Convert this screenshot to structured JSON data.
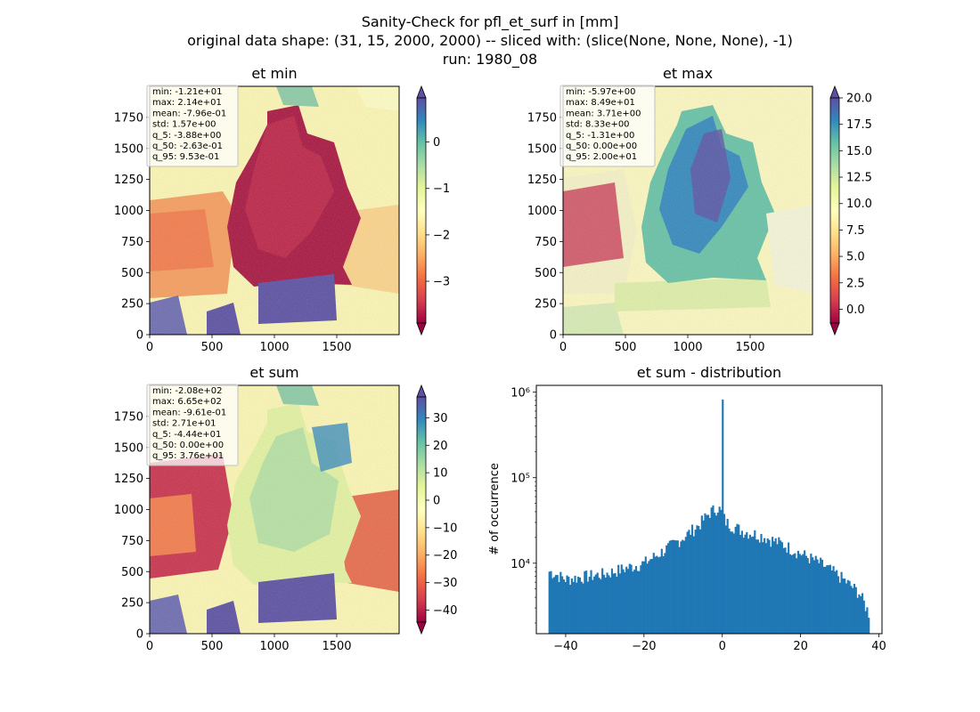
{
  "figure": {
    "title_lines": [
      "Sanity-Check for pfl_et_surf in [mm]",
      "original data shape: (31, 15, 2000, 2000) -- sliced with: (slice(None, None, None), -1)",
      "run: 1980_08"
    ]
  },
  "chart_data": [
    {
      "type": "heatmap",
      "title": "et min",
      "xticks": [
        "0",
        "500",
        "1000",
        "1500"
      ],
      "yticks": [
        "0",
        "250",
        "500",
        "750",
        "1000",
        "1250",
        "1500",
        "1750"
      ],
      "xlim": [
        0,
        2000
      ],
      "ylim": [
        0,
        2000
      ],
      "colormap": "Spectral",
      "colorbar": {
        "range": [
          -3.9,
          0.95
        ],
        "ticks": [
          "0",
          "−1",
          "−2",
          "−3"
        ],
        "tick_values": [
          0,
          -1,
          -2,
          -3
        ],
        "extend": "both"
      },
      "stats": [
        "min: -1.21e+01",
        "max: 2.14e+01",
        "mean: -7.96e-01",
        "std: 1.57e+00",
        "q_5: -3.88e+00",
        "q_50: -2.63e-01",
        "q_95: 9.53e-01"
      ]
    },
    {
      "type": "heatmap",
      "title": "et max",
      "xticks": [
        "0",
        "500",
        "1000",
        "1500"
      ],
      "yticks": [
        "0",
        "250",
        "500",
        "750",
        "1000",
        "1250",
        "1500",
        "1750"
      ],
      "xlim": [
        0,
        2000
      ],
      "ylim": [
        0,
        2000
      ],
      "colormap": "Spectral",
      "colorbar": {
        "range": [
          -1.31,
          20.0
        ],
        "ticks": [
          "0.0",
          "2.5",
          "5.0",
          "7.5",
          "10.0",
          "12.5",
          "15.0",
          "17.5",
          "20.0"
        ],
        "tick_values": [
          0,
          2.5,
          5,
          7.5,
          10,
          12.5,
          15,
          17.5,
          20
        ],
        "extend": "both"
      },
      "stats": [
        "min: -5.97e+00",
        "max: 8.49e+01",
        "mean: 3.71e+00",
        "std: 8.33e+00",
        "q_5: -1.31e+00",
        "q_50: 0.00e+00",
        "q_95: 2.00e+01"
      ]
    },
    {
      "type": "heatmap",
      "title": "et sum",
      "xticks": [
        "0",
        "500",
        "1000",
        "1500"
      ],
      "yticks": [
        "0",
        "250",
        "500",
        "750",
        "1000",
        "1250",
        "1500",
        "1750"
      ],
      "xlim": [
        0,
        2000
      ],
      "ylim": [
        0,
        2000
      ],
      "colormap": "Spectral",
      "colorbar": {
        "range": [
          -44.4,
          37.6
        ],
        "ticks": [
          "30",
          "20",
          "10",
          "0",
          "−10",
          "−20",
          "−30",
          "−40"
        ],
        "tick_values": [
          30,
          20,
          10,
          0,
          -10,
          -20,
          -30,
          -40
        ],
        "extend": "both"
      },
      "stats": [
        "min: -2.08e+02",
        "max: 6.65e+02",
        "mean: -9.61e-01",
        "std: 2.71e+01",
        "q_5: -4.44e+01",
        "q_50: 0.00e+00",
        "q_95: 3.76e+01"
      ]
    },
    {
      "type": "bar",
      "title": "et sum - distribution",
      "ylabel": "# of occurrence",
      "xlabel": "",
      "xscale": "linear",
      "yscale": "log",
      "xlim": [
        -47.5,
        40.8
      ],
      "ylim": [
        1500,
        1200000
      ],
      "xticks": [
        "−40",
        "−20",
        "0",
        "20",
        "40"
      ],
      "xtick_values": [
        -40,
        -20,
        0,
        20,
        40
      ],
      "yticks": [
        "10⁴",
        "10⁵",
        "10⁶"
      ],
      "ytick_values": [
        10000,
        100000,
        1000000
      ],
      "bar_color": "#1f77b4",
      "x_range": [
        -44.4,
        37.6
      ],
      "peak": {
        "x": 0,
        "value": 820000
      },
      "envelope": [
        {
          "x": -44,
          "value": 8000
        },
        {
          "x": -40,
          "value": 6500
        },
        {
          "x": -30,
          "value": 7500
        },
        {
          "x": -20,
          "value": 10000
        },
        {
          "x": -15,
          "value": 14000
        },
        {
          "x": -10,
          "value": 20000
        },
        {
          "x": -6,
          "value": 28000
        },
        {
          "x": -3,
          "value": 40000
        },
        {
          "x": -1,
          "value": 45000
        },
        {
          "x": 1,
          "value": 30000
        },
        {
          "x": 5,
          "value": 24000
        },
        {
          "x": 10,
          "value": 21000
        },
        {
          "x": 15,
          "value": 17000
        },
        {
          "x": 20,
          "value": 13000
        },
        {
          "x": 25,
          "value": 10000
        },
        {
          "x": 30,
          "value": 7000
        },
        {
          "x": 35,
          "value": 4500
        },
        {
          "x": 37.6,
          "value": 2500
        }
      ]
    }
  ]
}
